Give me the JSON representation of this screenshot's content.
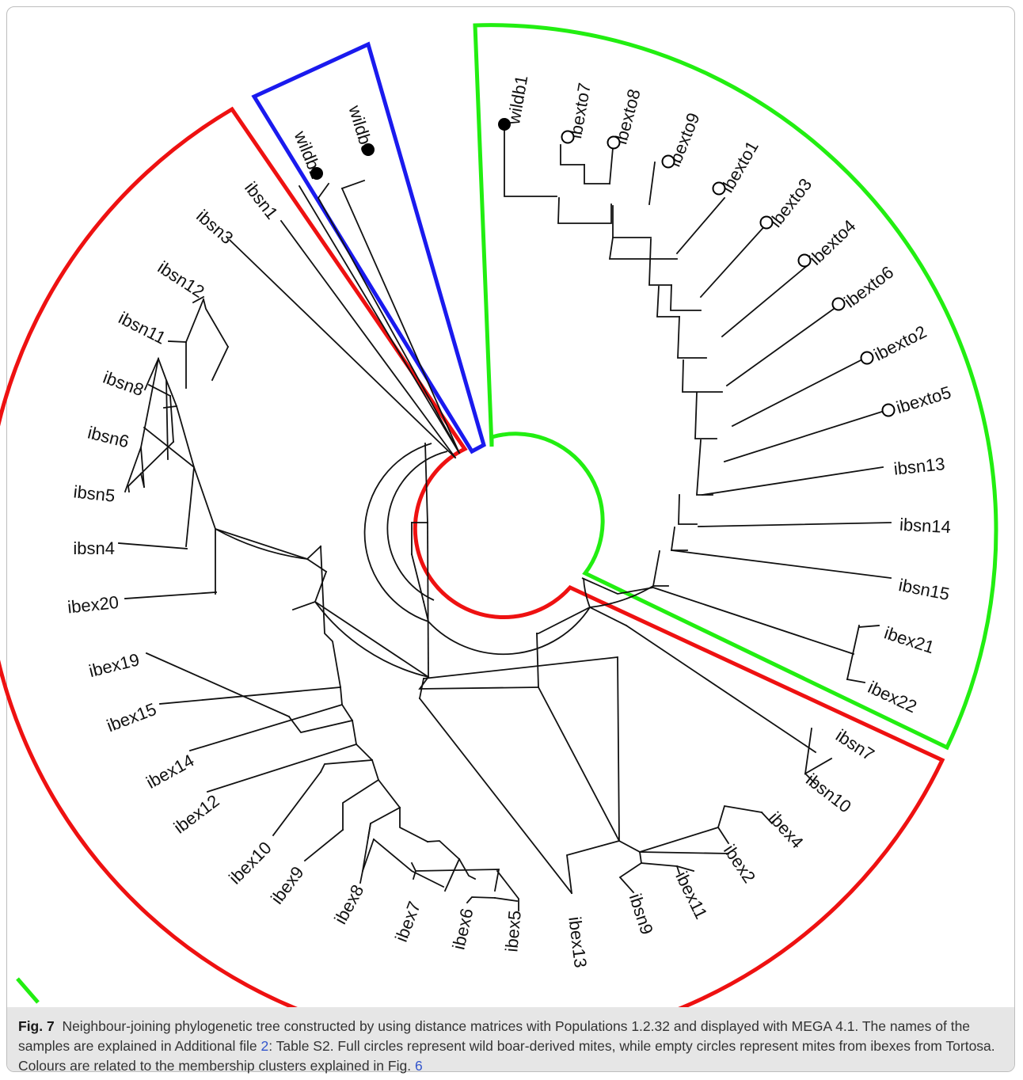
{
  "figure": {
    "caption_label": "Fig. 7",
    "caption_text_1": "Neighbour-joining phylogenetic tree constructed by using distance matrices with Populations 1.2.32 and displayed with MEGA 4.1. The names of the samples are explained in Additional file ",
    "caption_link_1": "2",
    "caption_text_2": ": Table S2. Full circles represent wild boar-derived mites, while empty circles represent mites from ibexes from Tortosa. Colours are related to the membership clusters explained in Fig. ",
    "caption_link_2": "6"
  },
  "colors": {
    "cluster_red": "#ee1111",
    "cluster_blue": "#1a1aee",
    "cluster_green": "#22ee11",
    "branch": "#111111"
  },
  "leaves": [
    {
      "name": "wildb1",
      "marker": "full-circle",
      "cluster": "green"
    },
    {
      "name": "ibexto7",
      "marker": "empty-circle",
      "cluster": "green"
    },
    {
      "name": "ibexto8",
      "marker": "empty-circle",
      "cluster": "green"
    },
    {
      "name": "ibexto9",
      "marker": "empty-circle",
      "cluster": "green"
    },
    {
      "name": "ibexto1",
      "marker": "empty-circle",
      "cluster": "green"
    },
    {
      "name": "ibexto3",
      "marker": "empty-circle",
      "cluster": "green"
    },
    {
      "name": "ibexto4",
      "marker": "empty-circle",
      "cluster": "green"
    },
    {
      "name": "ibexto6",
      "marker": "empty-circle",
      "cluster": "green"
    },
    {
      "name": "ibexto2",
      "marker": "empty-circle",
      "cluster": "green"
    },
    {
      "name": "ibexto5",
      "marker": "empty-circle",
      "cluster": "green"
    },
    {
      "name": "ibsn13",
      "marker": "none",
      "cluster": "green"
    },
    {
      "name": "ibsn14",
      "marker": "none",
      "cluster": "green"
    },
    {
      "name": "ibsn15",
      "marker": "none",
      "cluster": "green"
    },
    {
      "name": "ibex21",
      "marker": "none",
      "cluster": "green"
    },
    {
      "name": "ibex22",
      "marker": "none",
      "cluster": "green"
    },
    {
      "name": "ibsn7",
      "marker": "none",
      "cluster": "red"
    },
    {
      "name": "ibsn10",
      "marker": "none",
      "cluster": "red"
    },
    {
      "name": "ibex4",
      "marker": "none",
      "cluster": "red"
    },
    {
      "name": "ibex2",
      "marker": "none",
      "cluster": "red"
    },
    {
      "name": "ibex11",
      "marker": "none",
      "cluster": "red"
    },
    {
      "name": "ibsn9",
      "marker": "none",
      "cluster": "red"
    },
    {
      "name": "ibex13",
      "marker": "none",
      "cluster": "red"
    },
    {
      "name": "ibex5",
      "marker": "none",
      "cluster": "red"
    },
    {
      "name": "ibex6",
      "marker": "none",
      "cluster": "red"
    },
    {
      "name": "ibex7",
      "marker": "none",
      "cluster": "red"
    },
    {
      "name": "ibex8",
      "marker": "none",
      "cluster": "red"
    },
    {
      "name": "ibex9",
      "marker": "none",
      "cluster": "red"
    },
    {
      "name": "ibex10",
      "marker": "none",
      "cluster": "red"
    },
    {
      "name": "ibex12",
      "marker": "none",
      "cluster": "red"
    },
    {
      "name": "ibex14",
      "marker": "none",
      "cluster": "red"
    },
    {
      "name": "ibex15",
      "marker": "none",
      "cluster": "red"
    },
    {
      "name": "ibex19",
      "marker": "none",
      "cluster": "red"
    },
    {
      "name": "ibex20",
      "marker": "none",
      "cluster": "red"
    },
    {
      "name": "ibsn4",
      "marker": "none",
      "cluster": "red"
    },
    {
      "name": "ibsn5",
      "marker": "none",
      "cluster": "red"
    },
    {
      "name": "ibsn6",
      "marker": "none",
      "cluster": "red"
    },
    {
      "name": "ibsn8",
      "marker": "none",
      "cluster": "red"
    },
    {
      "name": "ibsn11",
      "marker": "none",
      "cluster": "red"
    },
    {
      "name": "ibsn12",
      "marker": "none",
      "cluster": "red"
    },
    {
      "name": "ibsn3",
      "marker": "none",
      "cluster": "red"
    },
    {
      "name": "ibsn1",
      "marker": "none",
      "cluster": "red"
    },
    {
      "name": "wildb2",
      "marker": "full-circle",
      "cluster": "blue"
    },
    {
      "name": "wildb3",
      "marker": "full-circle",
      "cluster": "blue"
    }
  ]
}
